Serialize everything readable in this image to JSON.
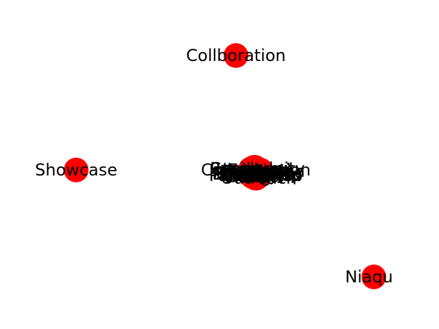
{
  "graph": {
    "node_color": "#ff0000",
    "label_color": "#000000",
    "nodes": [
      {
        "id": "collboration",
        "label": "Collboration"
      },
      {
        "id": "showcase",
        "label": "Showcase"
      },
      {
        "id": "niaqu",
        "label": "Niaqu"
      }
    ],
    "central_cluster": {
      "labels": [
        "Collaboration",
        "Workshop",
        "Research",
        "Project",
        "Design",
        "Community",
        "Exhibition",
        "Gallery",
        "Outreach",
        "Program",
        "Network",
        "Residency",
        "Archive",
        "Studio",
        "Partnership",
        "Festival",
        "Education",
        "Hub",
        "Field",
        "Library",
        "Display",
        "Installed"
      ]
    }
  }
}
